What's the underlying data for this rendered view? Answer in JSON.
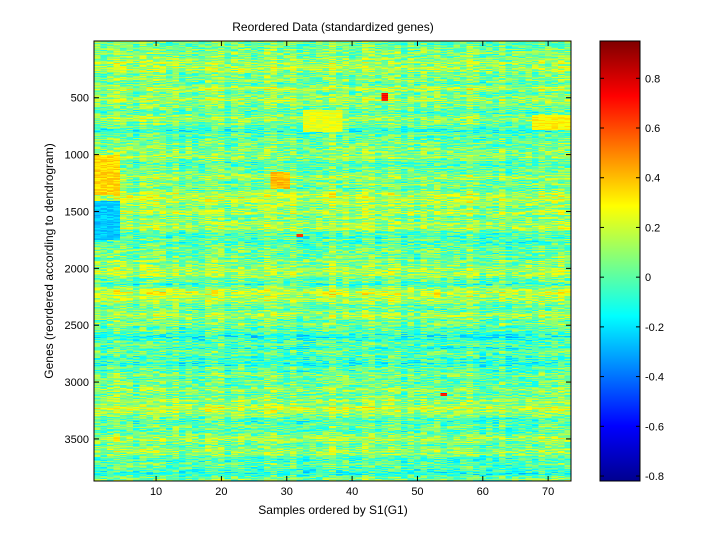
{
  "chart_data": {
    "type": "heatmap",
    "title": "Reordered Data (standardized genes)",
    "xlabel": "Samples ordered by S1(G1)",
    "ylabel": "Genes (reordered according to dendrogram)",
    "x_range": [
      0.5,
      73.5
    ],
    "y_range": [
      1,
      3870
    ],
    "y_direction": "top-to-bottom",
    "n_samples": 73,
    "n_genes": 3870,
    "x_ticks": [
      10,
      20,
      30,
      40,
      50,
      60,
      70
    ],
    "y_ticks": [
      500,
      1000,
      1500,
      2000,
      2500,
      3000,
      3500
    ],
    "colorbar": {
      "colormap": "jet",
      "range": [
        -0.82,
        0.95
      ],
      "ticks": [
        0.8,
        0.6,
        0.4,
        0.2,
        0,
        -0.2,
        -0.4,
        -0.6,
        -0.8
      ],
      "tick_labels": [
        "0.8",
        "0.6",
        "0.4",
        "0.2",
        "0",
        "-0.2",
        "-0.4",
        "-0.6",
        "-0.8"
      ]
    },
    "notable_regions": [
      {
        "samples": [
          1,
          4
        ],
        "genes": [
          1000,
          1350
        ],
        "level": 0.35
      },
      {
        "samples": [
          1,
          4
        ],
        "genes": [
          1400,
          1750
        ],
        "level": -0.25
      },
      {
        "samples": [
          33,
          38
        ],
        "genes": [
          600,
          800
        ],
        "level": 0.25
      },
      {
        "samples": [
          68,
          73
        ],
        "genes": [
          650,
          780
        ],
        "level": 0.3
      },
      {
        "samples": [
          28,
          30
        ],
        "genes": [
          1150,
          1300
        ],
        "level": 0.4
      },
      {
        "samples": [
          45,
          45
        ],
        "genes": [
          450,
          520
        ],
        "level": 0.7
      },
      {
        "samples": [
          32,
          32
        ],
        "genes": [
          1690,
          1720
        ],
        "level": 0.65
      },
      {
        "samples": [
          54,
          54
        ],
        "genes": [
          3090,
          3120
        ],
        "level": 0.7
      }
    ],
    "grid": false
  }
}
